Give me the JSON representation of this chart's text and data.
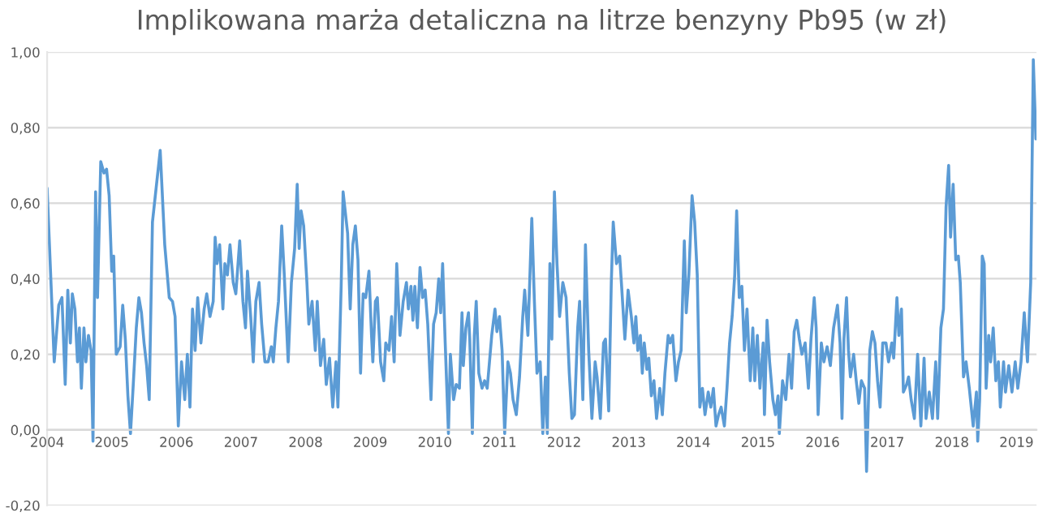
{
  "chart_data": {
    "type": "line",
    "title": "Implikowana marża detaliczna na litrze benzyny Pb95 (w zł)",
    "series": [
      {
        "color": "#5b9bd5",
        "x": [
          2004.0,
          2004.11,
          2004.18,
          2004.23,
          2004.28,
          2004.32,
          2004.36,
          2004.39,
          2004.43,
          2004.47,
          2004.5,
          2004.53,
          2004.57,
          2004.6,
          2004.64,
          2004.68,
          2004.71,
          2004.75,
          2004.78,
          2004.83,
          2004.88,
          2004.92,
          2004.96,
          2005.0,
          2005.03,
          2005.07,
          2005.13,
          2005.17,
          2005.21,
          2005.25,
          2005.29,
          2005.33,
          2005.38,
          2005.42,
          2005.46,
          2005.5,
          2005.54,
          2005.58,
          2005.63,
          2005.75,
          2005.82,
          2005.89,
          2005.94,
          2005.98,
          2006.03,
          2006.08,
          2006.13,
          2006.17,
          2006.21,
          2006.25,
          2006.29,
          2006.33,
          2006.38,
          2006.43,
          2006.47,
          2006.52,
          2006.57,
          2006.6,
          2006.63,
          2006.67,
          2006.72,
          2006.75,
          2006.79,
          2006.83,
          2006.88,
          2006.92,
          2006.98,
          2007.03,
          2007.07,
          2007.1,
          2007.15,
          2007.19,
          2007.23,
          2007.28,
          2007.32,
          2007.37,
          2007.42,
          2007.47,
          2007.5,
          2007.54,
          2007.58,
          2007.63,
          2007.67,
          2007.73,
          2007.78,
          2007.83,
          2007.87,
          2007.9,
          2007.93,
          2007.97,
          2008.02,
          2008.05,
          2008.1,
          2008.15,
          2008.18,
          2008.23,
          2008.28,
          2008.32,
          2008.37,
          2008.42,
          2008.47,
          2008.5,
          2008.55,
          2008.58,
          2008.65,
          2008.69,
          2008.73,
          2008.77,
          2008.81,
          2008.85,
          2008.89,
          2008.93,
          2008.98,
          2009.02,
          2009.04,
          2009.08,
          2009.11,
          2009.16,
          2009.21,
          2009.24,
          2009.29,
          2009.33,
          2009.37,
          2009.41,
          2009.46,
          2009.51,
          2009.56,
          2009.59,
          2009.63,
          2009.66,
          2009.69,
          2009.73,
          2009.77,
          2009.81,
          2009.85,
          2009.89,
          2009.94,
          2009.98,
          2010.02,
          2010.06,
          2010.09,
          2010.12,
          2010.16,
          2010.21,
          2010.24,
          2010.29,
          2010.33,
          2010.38,
          2010.42,
          2010.44,
          2010.48,
          2010.52,
          2010.54,
          2010.58,
          2010.61,
          2010.64,
          2010.68,
          2010.73,
          2010.77,
          2010.81,
          2010.83,
          2010.88,
          2010.93,
          2010.96,
          2011.0,
          2011.04,
          2011.08,
          2011.13,
          2011.17,
          2011.21,
          2011.26,
          2011.31,
          2011.36,
          2011.39,
          2011.44,
          2011.5,
          2011.54,
          2011.58,
          2011.63,
          2011.67,
          2011.71,
          2011.74,
          2011.78,
          2011.81,
          2011.85,
          2011.89,
          2011.93,
          2011.98,
          2012.03,
          2012.08,
          2012.12,
          2012.16,
          2012.21,
          2012.24,
          2012.29,
          2012.33,
          2012.38,
          2012.43,
          2012.48,
          2012.51,
          2012.56,
          2012.61,
          2012.64,
          2012.69,
          2012.73,
          2012.76,
          2012.81,
          2012.86,
          2012.89,
          2012.94,
          2012.99,
          2013.04,
          2013.08,
          2013.11,
          2013.14,
          2013.18,
          2013.21,
          2013.24,
          2013.28,
          2013.31,
          2013.35,
          2013.39,
          2013.43,
          2013.48,
          2013.52,
          2013.56,
          2013.61,
          2013.64,
          2013.68,
          2013.73,
          2013.77,
          2013.81,
          2013.86,
          2013.89,
          2013.93,
          2013.98,
          2014.02,
          2014.06,
          2014.1,
          2014.14,
          2014.18,
          2014.23,
          2014.27,
          2014.31,
          2014.35,
          2014.39,
          2014.43,
          2014.48,
          2014.52,
          2014.56,
          2014.6,
          2014.64,
          2014.67,
          2014.71,
          2014.75,
          2014.79,
          2014.83,
          2014.88,
          2014.92,
          2014.95,
          2014.99,
          2015.03,
          2015.08,
          2015.1,
          2015.14,
          2015.18,
          2015.23,
          2015.27,
          2015.31,
          2015.33,
          2015.38,
          2015.43,
          2015.48,
          2015.52,
          2015.56,
          2015.6,
          2015.64,
          2015.68,
          2015.73,
          2015.78,
          2015.82,
          2015.87,
          2015.9,
          2015.93,
          2015.98,
          2016.02,
          2016.07,
          2016.12,
          2016.17,
          2016.23,
          2016.27,
          2016.3,
          2016.33,
          2016.37,
          2016.4,
          2016.43,
          2016.48,
          2016.52,
          2016.56,
          2016.6,
          2016.65,
          2016.68,
          2016.73,
          2016.77,
          2016.81,
          2016.85,
          2016.89,
          2016.93,
          2016.98,
          2017.02,
          2017.07,
          2017.1,
          2017.15,
          2017.18,
          2017.22,
          2017.25,
          2017.3,
          2017.33,
          2017.37,
          2017.42,
          2017.47,
          2017.52,
          2017.57,
          2017.6,
          2017.65,
          2017.7,
          2017.75,
          2017.78,
          2017.83,
          2017.87,
          2017.91,
          2017.95,
          2017.98,
          2018.02,
          2018.06,
          2018.1,
          2018.13,
          2018.18,
          2018.22,
          2018.27,
          2018.3,
          2018.33,
          2018.38,
          2018.4,
          2018.43,
          2018.47,
          2018.5,
          2018.53,
          2018.57,
          2018.6,
          2018.64,
          2018.68,
          2018.72,
          2018.75,
          2018.8,
          2018.83,
          2018.88,
          2018.93,
          2018.98,
          2019.02,
          2019.07,
          2019.12,
          2019.17,
          2019.22,
          2019.26,
          2019.3
        ],
        "values": [
          0.64,
          0.18,
          0.33,
          0.35,
          0.12,
          0.37,
          0.23,
          0.36,
          0.32,
          0.18,
          0.27,
          0.11,
          0.27,
          0.18,
          0.25,
          0.21,
          -0.03,
          0.63,
          0.35,
          0.71,
          0.68,
          0.69,
          0.62,
          0.42,
          0.46,
          0.2,
          0.22,
          0.33,
          0.24,
          0.09,
          -0.01,
          0.11,
          0.27,
          0.35,
          0.31,
          0.23,
          0.17,
          0.08,
          0.55,
          0.74,
          0.49,
          0.35,
          0.34,
          0.3,
          0.01,
          0.18,
          0.08,
          0.2,
          0.06,
          0.32,
          0.21,
          0.35,
          0.23,
          0.32,
          0.36,
          0.3,
          0.34,
          0.51,
          0.44,
          0.49,
          0.32,
          0.44,
          0.41,
          0.49,
          0.39,
          0.36,
          0.5,
          0.34,
          0.27,
          0.42,
          0.3,
          0.18,
          0.34,
          0.39,
          0.28,
          0.18,
          0.18,
          0.22,
          0.18,
          0.27,
          0.34,
          0.54,
          0.41,
          0.18,
          0.39,
          0.48,
          0.65,
          0.48,
          0.58,
          0.54,
          0.39,
          0.28,
          0.34,
          0.21,
          0.34,
          0.17,
          0.24,
          0.12,
          0.19,
          0.06,
          0.18,
          0.06,
          0.38,
          0.63,
          0.52,
          0.32,
          0.49,
          0.54,
          0.45,
          0.15,
          0.36,
          0.35,
          0.42,
          0.25,
          0.18,
          0.34,
          0.35,
          0.18,
          0.13,
          0.23,
          0.21,
          0.3,
          0.18,
          0.44,
          0.25,
          0.34,
          0.39,
          0.32,
          0.38,
          0.29,
          0.38,
          0.27,
          0.43,
          0.35,
          0.37,
          0.28,
          0.08,
          0.28,
          0.31,
          0.4,
          0.31,
          0.44,
          0.23,
          -0.01,
          0.2,
          0.08,
          0.12,
          0.11,
          0.31,
          0.17,
          0.27,
          0.31,
          0.24,
          -0.01,
          0.25,
          0.34,
          0.15,
          0.11,
          0.13,
          0.11,
          0.15,
          0.25,
          0.32,
          0.26,
          0.3,
          0.21,
          -0.01,
          0.18,
          0.15,
          0.08,
          0.04,
          0.14,
          0.3,
          0.37,
          0.25,
          0.56,
          0.34,
          0.15,
          0.18,
          -0.01,
          0.14,
          -0.01,
          0.44,
          0.24,
          0.63,
          0.44,
          0.3,
          0.39,
          0.35,
          0.15,
          0.03,
          0.04,
          0.27,
          0.34,
          0.08,
          0.49,
          0.21,
          0.03,
          0.18,
          0.14,
          0.03,
          0.23,
          0.24,
          0.05,
          0.39,
          0.55,
          0.44,
          0.46,
          0.38,
          0.24,
          0.37,
          0.3,
          0.23,
          0.3,
          0.21,
          0.25,
          0.15,
          0.23,
          0.16,
          0.19,
          0.09,
          0.13,
          0.03,
          0.11,
          0.04,
          0.15,
          0.25,
          0.23,
          0.25,
          0.13,
          0.18,
          0.21,
          0.5,
          0.31,
          0.41,
          0.62,
          0.55,
          0.41,
          0.06,
          0.11,
          0.04,
          0.1,
          0.06,
          0.11,
          0.01,
          0.04,
          0.06,
          0.01,
          0.11,
          0.23,
          0.3,
          0.41,
          0.58,
          0.35,
          0.38,
          0.21,
          0.32,
          0.13,
          0.27,
          0.13,
          0.25,
          0.11,
          0.23,
          0.04,
          0.29,
          0.18,
          0.08,
          0.04,
          0.09,
          -0.01,
          0.13,
          0.08,
          0.2,
          0.11,
          0.26,
          0.29,
          0.24,
          0.2,
          0.23,
          0.11,
          0.24,
          0.35,
          0.27,
          0.04,
          0.23,
          0.18,
          0.22,
          0.17,
          0.27,
          0.33,
          0.23,
          0.03,
          0.24,
          0.35,
          0.21,
          0.14,
          0.2,
          0.13,
          0.07,
          0.13,
          0.11,
          -0.11,
          0.21,
          0.26,
          0.23,
          0.13,
          0.06,
          0.23,
          0.23,
          0.18,
          0.23,
          0.19,
          0.35,
          0.25,
          0.32,
          0.1,
          0.12,
          0.14,
          0.08,
          0.03,
          0.2,
          0.01,
          0.19,
          0.03,
          0.1,
          0.03,
          0.18,
          0.03,
          0.27,
          0.32,
          0.59,
          0.7,
          0.51,
          0.65,
          0.45,
          0.46,
          0.39,
          0.14,
          0.18,
          0.11,
          0.06,
          0.01,
          0.1,
          -0.03,
          0.08,
          0.46,
          0.44,
          0.11,
          0.25,
          0.18,
          0.27,
          0.13,
          0.18,
          0.06,
          0.18,
          0.1,
          0.17,
          0.1,
          0.18,
          0.11,
          0.18,
          0.31,
          0.18,
          0.39,
          0.98,
          0.77
        ]
      }
    ],
    "xlim": [
      2004,
      2019.31
    ],
    "xticks": [
      2004,
      2005,
      2006,
      2007,
      2008,
      2009,
      2010,
      2011,
      2012,
      2013,
      2014,
      2015,
      2016,
      2017,
      2018,
      2019
    ],
    "ylim": [
      -0.2,
      1.0
    ],
    "yticks": [
      {
        "value": -0.2,
        "label": "-0,20"
      },
      {
        "value": 0,
        "label": "0,00"
      },
      {
        "value": 0.2,
        "label": "0,20"
      },
      {
        "value": 0.4,
        "label": "0,40"
      },
      {
        "value": 0.6,
        "label": "0,60"
      },
      {
        "value": 0.8,
        "label": "0,80"
      },
      {
        "value": 1.0,
        "label": "1,00"
      }
    ],
    "grid": "y"
  }
}
